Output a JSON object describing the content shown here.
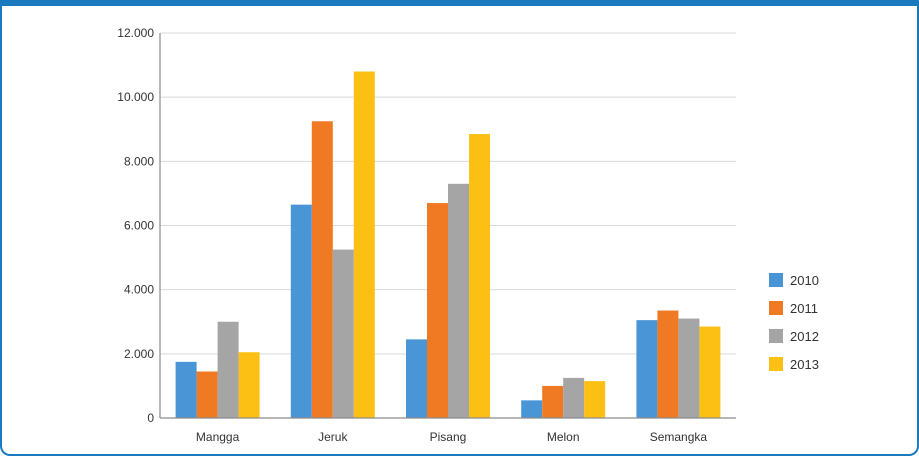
{
  "chart_data": {
    "type": "bar",
    "title": "",
    "xlabel": "",
    "ylabel": "",
    "categories": [
      "Mangga",
      "Jeruk",
      "Pisang",
      "Melon",
      "Semangka"
    ],
    "series": [
      {
        "name": "2010",
        "color": "#4a95d6",
        "values": [
          1750,
          6650,
          2450,
          550,
          3050
        ]
      },
      {
        "name": "2011",
        "color": "#ef7a23",
        "values": [
          1450,
          9250,
          6700,
          1000,
          3350
        ]
      },
      {
        "name": "2012",
        "color": "#a5a5a5",
        "values": [
          3000,
          5250,
          7300,
          1250,
          3100
        ]
      },
      {
        "name": "2013",
        "color": "#fcbf14",
        "values": [
          2050,
          10800,
          8850,
          1150,
          2850
        ]
      }
    ],
    "ylim": [
      0,
      12000
    ],
    "yticks": [
      0,
      2000,
      4000,
      6000,
      8000,
      10000,
      12000
    ],
    "ytick_labels": [
      "0",
      "2.000",
      "4.000",
      "6.000",
      "8.000",
      "10.000",
      "12.000"
    ],
    "grid": true,
    "legend_position": "right"
  }
}
